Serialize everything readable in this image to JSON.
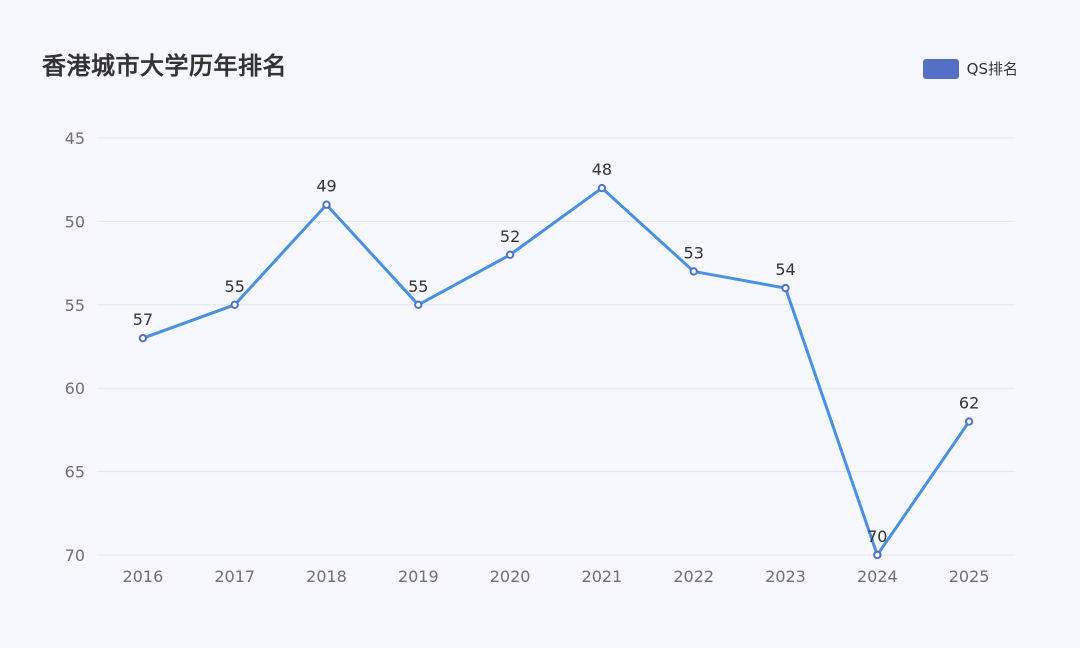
{
  "chart_data": {
    "type": "line",
    "title": "香港城市大学历年排名",
    "xlabel": "",
    "ylabel": "",
    "categories": [
      "2016",
      "2017",
      "2018",
      "2019",
      "2020",
      "2021",
      "2022",
      "2023",
      "2024",
      "2025"
    ],
    "series": [
      {
        "name": "QS排名",
        "values": [
          57,
          55,
          49,
          55,
          52,
          48,
          53,
          54,
          70,
          62
        ]
      }
    ],
    "ylim": [
      45,
      70
    ],
    "y_inverted": true,
    "y_ticks": [
      "45",
      "50",
      "55",
      "60",
      "65",
      "70"
    ],
    "grid": true,
    "legend_position": "top-right",
    "colors": {
      "line": "#4a90e2",
      "marker": "#5470c6",
      "legend": "#5470c6",
      "grid": "#e0e6f1"
    }
  }
}
